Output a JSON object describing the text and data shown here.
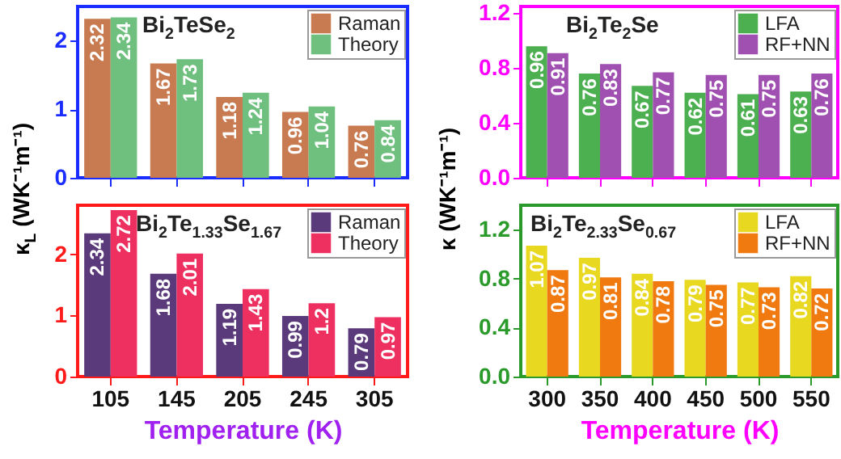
{
  "chart_data": [
    {
      "type": "bar",
      "title": "Bi$_{2}$TeSe$_{2}$",
      "categories": [
        "105",
        "145",
        "205",
        "245",
        "305"
      ],
      "series": [
        {
          "name": "Raman",
          "color": "#c87a50",
          "values": [
            2.32,
            1.67,
            1.18,
            0.96,
            0.76
          ]
        },
        {
          "name": "Theory",
          "color": "#6fbf7f",
          "values": [
            2.34,
            1.73,
            1.24,
            1.04,
            0.84
          ]
        }
      ],
      "ylim": [
        0,
        2.5
      ],
      "yticks": [
        0,
        1,
        2
      ],
      "data_labels": true,
      "legend": "top right",
      "tick_labels": "y"
    },
    {
      "type": "bar",
      "title": "Bi$_{2}$Te$_{1.33}$Se$_{1.67}$",
      "xlabel": "Temperature (K)",
      "ylabel": "κ$_{L}$ (WK⁻¹m⁻¹)",
      "categories": [
        "105",
        "145",
        "205",
        "245",
        "305"
      ],
      "series": [
        {
          "name": "Raman",
          "color": "#5a3a7a",
          "values": [
            2.34,
            1.68,
            1.19,
            0.99,
            0.79
          ]
        },
        {
          "name": "Theory",
          "color": "#ee3060",
          "values": [
            2.72,
            2.01,
            1.43,
            1.2,
            0.97
          ]
        }
      ],
      "ylim": [
        0,
        2.8
      ],
      "yticks": [
        0,
        1,
        2
      ],
      "data_labels": true,
      "legend": "top right"
    },
    {
      "type": "bar",
      "title": "Bi$_{2}$Te$_{2}$Se",
      "categories": [
        "300",
        "350",
        "400",
        "450",
        "500",
        "550"
      ],
      "series": [
        {
          "name": "LFA",
          "color": "#4caf50",
          "values": [
            0.96,
            0.76,
            0.67,
            0.62,
            0.61,
            0.63
          ]
        },
        {
          "name": "RF+NN",
          "color": "#a050b0",
          "values": [
            0.91,
            0.83,
            0.77,
            0.75,
            0.75,
            0.76
          ]
        }
      ],
      "ylim": [
        0,
        1.25
      ],
      "yticks": [
        {
          "value": 0,
          "label": "0.0"
        },
        0.4,
        0.8,
        1.2
      ],
      "data_labels": true,
      "legend": "top right",
      "tick_labels": "y"
    },
    {
      "type": "bar",
      "title": "Bi$_{2}$Te$_{2.33}$Se$_{0.67}$",
      "xlabel": "Temperature (K)",
      "ylabel": "κ (WK⁻¹m⁻¹)",
      "categories": [
        "300",
        "350",
        "400",
        "450",
        "500",
        "550"
      ],
      "series": [
        {
          "name": "LFA",
          "color": "#e8d820",
          "values": [
            1.07,
            0.97,
            0.84,
            0.79,
            0.77,
            0.82
          ]
        },
        {
          "name": "RF+NN",
          "color": "#f07a10",
          "values": [
            0.87,
            0.81,
            0.78,
            0.75,
            0.73,
            0.72
          ]
        }
      ],
      "ylim": [
        0,
        1.4
      ],
      "yticks": [
        {
          "value": 0,
          "label": "0.0"
        },
        0.4,
        0.8,
        1.2
      ],
      "data_labels": true,
      "legend": "top right"
    }
  ]
}
